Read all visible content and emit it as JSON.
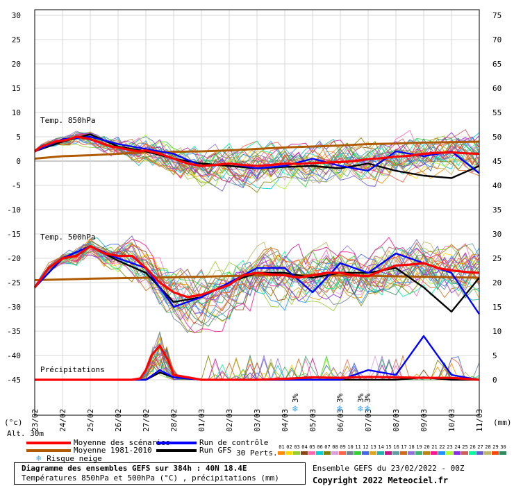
{
  "chart_data": {
    "type": "line",
    "title": "Diagramme des ensembles GEFS sur 384h : 40N 18.4E",
    "subtitle": "Températures 850hPa et 500hPa (°C) , précipitations (mm)",
    "run_info": "Ensemble GEFS du 23/02/2022 - 00Z",
    "copyright": "Copyright 2022 Meteociel.fr",
    "y_left_unit": "(°c)",
    "y_right_unit": "(mm)",
    "altitude": "Alt. 30m",
    "y_left_ticks": [
      "30",
      "25",
      "20",
      "15",
      "10",
      "5",
      "0",
      "-5",
      "-10",
      "-15",
      "-20",
      "-25",
      "-30",
      "-35",
      "-40",
      "-45"
    ],
    "y_right_ticks": [
      "75",
      "70",
      "65",
      "60",
      "55",
      "50",
      "45",
      "40",
      "35",
      "30",
      "25",
      "20",
      "15",
      "10",
      "5",
      "0"
    ],
    "x_ticks": [
      "23/02",
      "24/02",
      "25/02",
      "26/02",
      "27/02",
      "28/02",
      "01/03",
      "02/03",
      "03/03",
      "04/03",
      "05/03",
      "06/03",
      "07/03",
      "08/03",
      "09/03",
      "10/03",
      "11/03"
    ],
    "ylim_left": [
      -45,
      30
    ],
    "ylim_right": [
      0,
      75
    ],
    "grid": true,
    "panel_labels": {
      "t850": "Temp. 850hPa",
      "t500": "Temp. 500hPa",
      "precip": "Précipitations"
    },
    "snow_risk_x": [
      9.4,
      11.0,
      11.75,
      12.0
    ],
    "snow_label": "3%",
    "legend": [
      {
        "label": "Moyenne des scénarios",
        "color": "#ff0000"
      },
      {
        "label": "Moyenne 1981-2010",
        "color": "#b05a00"
      },
      {
        "label": "Risque neige",
        "color": "#4aa8e8"
      },
      {
        "label": "Run de contrôle",
        "color": "#0000ff"
      },
      {
        "label": "Run GFS",
        "color": "#000000"
      }
    ],
    "perturbations_label": "30 Perts.",
    "perturbation_codes": [
      "01",
      "02",
      "03",
      "04",
      "05",
      "06",
      "07",
      "08",
      "09",
      "10",
      "11",
      "12",
      "13",
      "14",
      "15",
      "16",
      "17",
      "18",
      "19",
      "20",
      "21",
      "22",
      "23",
      "24",
      "25",
      "26",
      "27",
      "28",
      "29",
      "30"
    ],
    "perturbation_colors": [
      "#ff8c00",
      "#ffd700",
      "#9acd32",
      "#8b4513",
      "#ff69b4",
      "#00ced1",
      "#808000",
      "#dda0dd",
      "#ff6347",
      "#708090",
      "#32cd32",
      "#4169e1",
      "#daa520",
      "#20b2aa",
      "#c71585",
      "#5f9ea0",
      "#d2691e",
      "#9370db",
      "#3cb371",
      "#b8860b",
      "#ff1493",
      "#1e90ff",
      "#adff2f",
      "#8a2be2",
      "#cd5c5c",
      "#00fa9a",
      "#6a5acd",
      "#bdb76b",
      "#ff4500",
      "#2e8b57"
    ],
    "series": [
      {
        "name": "Moyenne des scénarios",
        "panel": "t850",
        "x": [
          0,
          0.25,
          0.5,
          0.75,
          1,
          1.25,
          1.5,
          1.75,
          2,
          2.25,
          2.5,
          2.75,
          3,
          3.25,
          3.5,
          3.75,
          4,
          4.5,
          5,
          5.5,
          6,
          6.5,
          7,
          7.5,
          8,
          8.5,
          9,
          9.5,
          10,
          10.5,
          11,
          11.5,
          12,
          12.5,
          13,
          13.5,
          14,
          14.5,
          15,
          15.5,
          16
        ],
        "values": [
          2,
          3,
          3.5,
          4,
          4.2,
          4.5,
          5,
          4.8,
          4.5,
          4,
          3.5,
          3,
          2.8,
          2.5,
          2.2,
          2,
          2.2,
          1.5,
          0.5,
          -0.5,
          -1,
          -0.8,
          -0.5,
          -0.8,
          -1,
          -0.8,
          -0.5,
          -0.6,
          -0.4,
          -0.3,
          -0.2,
          0,
          0.4,
          0.6,
          0.9,
          1.1,
          1.5,
          1.7,
          1.8,
          1.6,
          1.5
        ]
      },
      {
        "name": "Moyenne 1981-2010",
        "panel": "t850",
        "x": [
          0,
          1,
          2,
          3,
          4,
          5,
          6,
          7,
          8,
          9,
          10,
          11,
          12,
          13,
          14,
          15,
          16
        ],
        "values": [
          0.5,
          1,
          1.2,
          1.5,
          1.8,
          1.9,
          2,
          2.2,
          2.5,
          2.8,
          3,
          3.2,
          3.5,
          3.6,
          3.8,
          3.9,
          4
        ]
      },
      {
        "name": "Run de contrôle",
        "panel": "t850",
        "x": [
          0,
          1,
          2,
          3,
          4,
          5,
          6,
          7,
          8,
          9,
          10,
          11,
          12,
          13,
          14,
          15,
          16
        ],
        "values": [
          2,
          4.5,
          5,
          3.5,
          2.5,
          1.5,
          -1,
          -0.5,
          -1.5,
          -1,
          0.5,
          -1,
          -2,
          2,
          1,
          2,
          -2.5
        ]
      },
      {
        "name": "Run GFS",
        "panel": "t850",
        "x": [
          0,
          1,
          2,
          3,
          4,
          5,
          6,
          7,
          8,
          9,
          10,
          11,
          12,
          13,
          14,
          15,
          16
        ],
        "values": [
          2,
          4,
          5.5,
          3,
          2,
          0.5,
          -0.5,
          -1,
          -1.5,
          -1.2,
          -1,
          -1.5,
          -0.5,
          -2,
          -3,
          -3.5,
          -1
        ]
      },
      {
        "name": "Moyenne des scénarios",
        "panel": "t500",
        "x": [
          0,
          0.5,
          1,
          1.5,
          2,
          2.5,
          3,
          3.5,
          4,
          4.5,
          5,
          5.5,
          6,
          6.5,
          7,
          7.5,
          8,
          8.5,
          9,
          9.5,
          10,
          10.5,
          11,
          11.5,
          12,
          12.5,
          13,
          13.5,
          14,
          14.5,
          15,
          15.5,
          16
        ],
        "values": [
          -26,
          -22,
          -20,
          -19.5,
          -17.5,
          -19,
          -19.5,
          -19.5,
          -22,
          -25,
          -27,
          -28,
          -27.5,
          -26.5,
          -25.5,
          -23.5,
          -23,
          -23.3,
          -23.5,
          -24,
          -23.5,
          -23,
          -23,
          -23.5,
          -23.7,
          -22.5,
          -21.5,
          -21.3,
          -21,
          -22,
          -22.5,
          -22.8,
          -23
        ]
      },
      {
        "name": "Moyenne 1981-2010",
        "panel": "t500",
        "x": [
          0,
          2,
          4,
          6,
          8,
          10,
          12,
          14,
          16
        ],
        "values": [
          -24.5,
          -24.2,
          -24,
          -23.8,
          -23.5,
          -23.5,
          -23.6,
          -23.8,
          -24
        ]
      },
      {
        "name": "Run de contrôle",
        "panel": "t500",
        "x": [
          0,
          1,
          2,
          3,
          4,
          5,
          6,
          7,
          8,
          9,
          10,
          11,
          12,
          13,
          14,
          15,
          16
        ],
        "values": [
          -26,
          -20,
          -17.5,
          -20,
          -22,
          -30,
          -28,
          -25,
          -22,
          -22,
          -27,
          -21,
          -23,
          -19,
          -21,
          -23,
          -31.5
        ]
      },
      {
        "name": "Run GFS",
        "panel": "t500",
        "x": [
          0,
          1,
          2,
          3,
          4,
          5,
          6,
          7,
          8,
          9,
          10,
          11,
          12,
          13,
          14,
          15,
          16
        ],
        "values": [
          -26,
          -20,
          -17.5,
          -20.5,
          -23,
          -29,
          -28,
          -25,
          -23,
          -23,
          -24,
          -23,
          -23,
          -22,
          -26,
          -31,
          -24
        ]
      },
      {
        "name": "Moyenne des scénarios",
        "panel": "precip",
        "x": [
          0,
          1,
          2,
          3,
          3.5,
          3.8,
          4,
          4.2,
          4.5,
          4.8,
          5,
          5.5,
          6,
          7,
          8,
          9,
          10,
          11,
          12,
          13,
          14,
          15,
          16
        ],
        "values": [
          0,
          0,
          0,
          0,
          0,
          0.3,
          2,
          5,
          7,
          4,
          1,
          0.5,
          0,
          0,
          0,
          0.2,
          0.5,
          0.4,
          0.6,
          0.5,
          0.4,
          0.4,
          0
        ]
      },
      {
        "name": "Run de contrôle",
        "panel": "precip",
        "x": [
          0,
          1,
          2,
          3,
          4,
          4.5,
          5,
          6,
          7,
          8,
          9,
          10,
          11,
          12,
          13,
          14,
          15,
          16
        ],
        "values": [
          0,
          0,
          0,
          0,
          0,
          2,
          0.5,
          0,
          0,
          0,
          0,
          0,
          0,
          2,
          1,
          9,
          1,
          0
        ]
      },
      {
        "name": "Run GFS",
        "panel": "precip",
        "x": [
          0,
          1,
          2,
          3,
          4,
          4.5,
          5,
          6,
          7,
          8,
          9,
          10,
          11,
          12,
          13,
          14,
          15,
          16
        ],
        "values": [
          0,
          0,
          0,
          0,
          0,
          1.5,
          0.5,
          0,
          0,
          0,
          0,
          0,
          0,
          0,
          0,
          0.5,
          0,
          0
        ]
      }
    ]
  }
}
